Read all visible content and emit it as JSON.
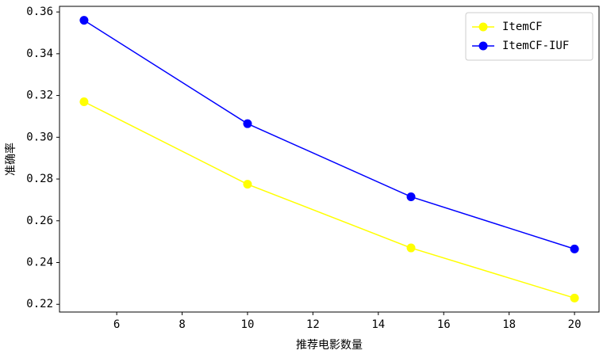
{
  "chart_data": {
    "type": "line",
    "x_label": "推荐电影数量",
    "y_label": "准确率",
    "x": [
      5,
      10,
      15,
      20
    ],
    "series": [
      {
        "name": "ItemCF",
        "color": "#ffff00",
        "values": [
          0.317,
          0.2775,
          0.247,
          0.223
        ]
      },
      {
        "name": "ItemCF-IUF",
        "color": "#0000ff",
        "values": [
          0.356,
          0.3065,
          0.2715,
          0.2465
        ]
      }
    ],
    "xlim": [
      4.25,
      20.75
    ],
    "xticks": [
      6,
      8,
      10,
      12,
      14,
      16,
      18,
      20
    ],
    "ylim": [
      0.2163,
      0.3627
    ],
    "yticks": [
      0.22,
      0.24,
      0.26,
      0.28,
      {
        "value": 0.3,
        "label": "0.30"
      },
      0.32,
      0.34,
      0.36
    ],
    "legend": "upper right"
  }
}
